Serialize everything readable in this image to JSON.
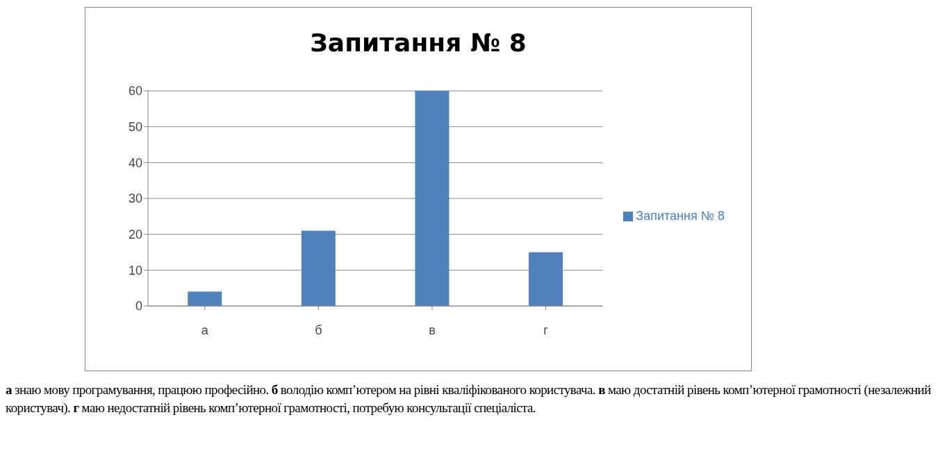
{
  "chart_data": {
    "type": "bar",
    "title": "Запитання № 8",
    "categories": [
      "а",
      "б",
      "в",
      "г"
    ],
    "series": [
      {
        "name": "Запитання № 8",
        "color": "#4f81bd",
        "values": [
          4,
          21,
          60,
          15
        ]
      }
    ],
    "ylim": [
      0,
      60
    ],
    "yticks": [
      0,
      10,
      20,
      30,
      40,
      50,
      60
    ],
    "grid": "y",
    "legend": "right",
    "annotations": [
      "а знаю мову програмування, працюю професійно.",
      "б володію комп’ютером на рівні кваліфікованого користувача.",
      "в маю достатній рівень комп’ютерної  грамотності (незалежний користувач).",
      "г маю недостатній рівень комп’ютерної  грамотності, потребую консультації спеціаліста."
    ]
  }
}
